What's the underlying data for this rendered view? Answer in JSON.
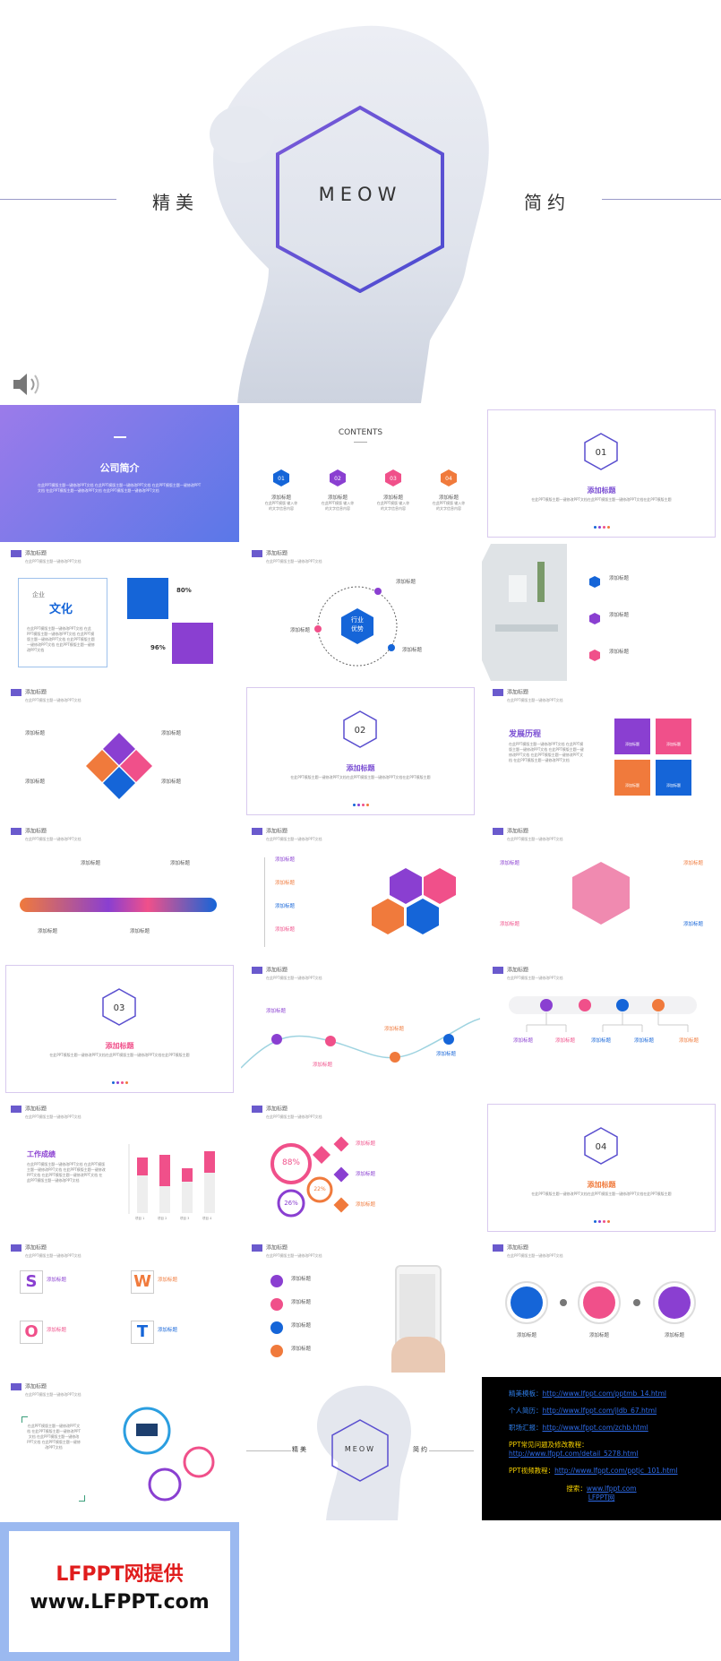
{
  "cover": {
    "left": "精美",
    "center": "MEOW",
    "right": "简约"
  },
  "s2": {
    "title": "公司简介",
    "text": "在此PPT模版主题一键修改PPT文档 在此PPT模版主题一键修改PPT文档 在此PPT模版主题一键修改PPT文档 在此PPT模版主题一键修改PPT文档 在此PPT模版主题一键修改PPT文档"
  },
  "s3": {
    "title": "CONTENTS",
    "items": [
      {
        "num": "01",
        "label": "添加标题"
      },
      {
        "num": "02",
        "label": "添加标题"
      },
      {
        "num": "03",
        "label": "添加标题"
      },
      {
        "num": "04",
        "label": "添加标题"
      }
    ],
    "desc": "在此PPT模版 输入你的文字信息内容"
  },
  "sec1": {
    "num": "01",
    "title": "添加标题",
    "desc": "在此PPT模版主题一键修改PPT文档在此PPT模版主题一键修改PPT文档在此PPT模版主题"
  },
  "sec2": {
    "num": "02",
    "title": "添加标题",
    "desc": "在此PPT模版主题一键修改PPT文档在此PPT模版主题一键修改PPT文档在此PPT模版主题"
  },
  "sec3": {
    "num": "03",
    "title": "添加标题",
    "desc": "在此PPT模版主题一键修改PPT文档在此PPT模版主题一键修改PPT文档在此PPT模版主题"
  },
  "sec4": {
    "num": "04",
    "title": "添加标题",
    "desc": "在此PPT模版主题一键修改PPT文档在此PPT模版主题一键修改PPT文档在此PPT模版主题"
  },
  "hdr": {
    "title": "添加标题",
    "sub": "在此PPT模版主题一键修改PPT文档"
  },
  "s5": {
    "small": "企业",
    "big": "文化",
    "p80": "80%",
    "p96": "96%"
  },
  "s6": {
    "center": "行业\n优势",
    "label": "添加标题"
  },
  "s7": {
    "items": [
      "01",
      "02",
      "03"
    ],
    "label": "添加标题"
  },
  "s9": {
    "title": "发展历程",
    "tiles": [
      "添加标题",
      "添加标题",
      "添加标题",
      "添加标题"
    ]
  },
  "s17": {
    "title": "工作成绩",
    "bars": [
      "项目 1",
      "项目 2",
      "项目 3",
      "项目 4"
    ]
  },
  "s18": {
    "p88": "88%",
    "p22": "22%",
    "p26": "26%"
  },
  "s20": {
    "letters": [
      "S",
      "W",
      "O",
      "T"
    ],
    "label": "添加标题"
  },
  "s22": {
    "label": "添加标题"
  },
  "s23": {
    "text": "在此PPT模版主题一键修改PPT文档 在此PPT模版主题一键修改PPT文档 在此PPT模版主题一键修改PPT文档 在此PPT模版主题一键修改PPT文档"
  },
  "s24": {
    "left": "精美",
    "center": "MEOW",
    "right": "简约"
  },
  "links": {
    "r1_label": "精美模板：",
    "r1_url": "http://www.lfppt.com/pptmb_14.html",
    "r2_label": "个人简历：",
    "r2_url": "http://www.lfppt.com/jldb_67.html",
    "r3_label": "职场汇报：",
    "r3_url": "http://www.lfppt.com/zchb.html",
    "r4_label": "PPT常见问题及修改教程：",
    "r4_url": "http://www.lfppt.com/detail_5278.html",
    "r5_label": "PPT视频教程：",
    "r5_url": "http://www.lfppt.com/pptjc_101.html",
    "r6_label": "搜索：",
    "r6_url": "www.lfppt.com",
    "r6_name": "LFPPT网"
  },
  "footer": {
    "line1": "LFPPT网提供",
    "line2": "www.LFPPT.com"
  }
}
